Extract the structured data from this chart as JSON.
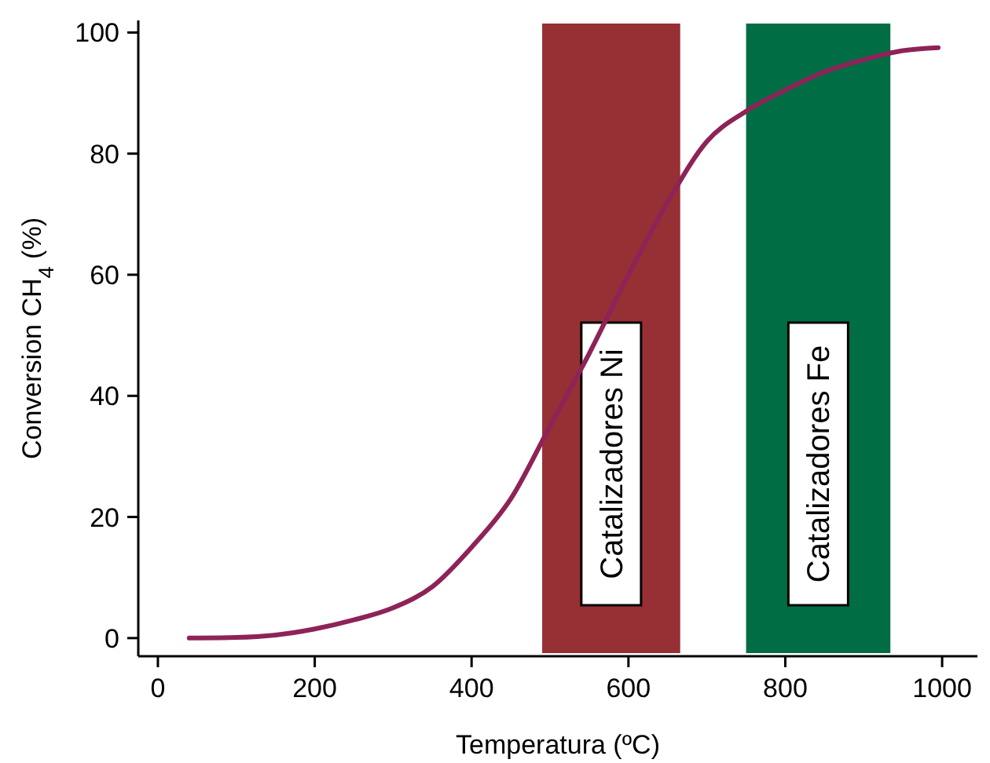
{
  "chart_data": {
    "type": "line",
    "xlabel": "Temperatura (ºC)",
    "ylabel": "Conversion CH$_{4}$ (%)",
    "xlim": [
      -25,
      1045
    ],
    "ylim": [
      -3,
      102
    ],
    "xticks": [
      0,
      200,
      400,
      600,
      800,
      1000
    ],
    "yticks": [
      0,
      20,
      40,
      60,
      80,
      100
    ],
    "grid": false,
    "marker": "none",
    "line_style": "solid",
    "x": [
      40,
      100,
      150,
      200,
      250,
      300,
      350,
      400,
      450,
      500,
      550,
      600,
      650,
      700,
      750,
      800,
      850,
      900,
      950,
      995
    ],
    "series": [
      {
        "color": "#8e2358",
        "values": [
          0,
          0.1,
          0.5,
          1.5,
          3,
          5,
          8.5,
          15,
          23,
          35,
          47,
          60,
          72,
          82,
          87,
          90.5,
          93.5,
          95.5,
          97,
          97.5
        ]
      }
    ],
    "bands": [
      {
        "axis": "x",
        "from": 490,
        "to": 666,
        "label": "Catalizadores Ni",
        "color": "#963034"
      },
      {
        "axis": "x",
        "from": 750,
        "to": 934,
        "label": "Catalizadores Fe",
        "color": "#006d44"
      }
    ]
  }
}
